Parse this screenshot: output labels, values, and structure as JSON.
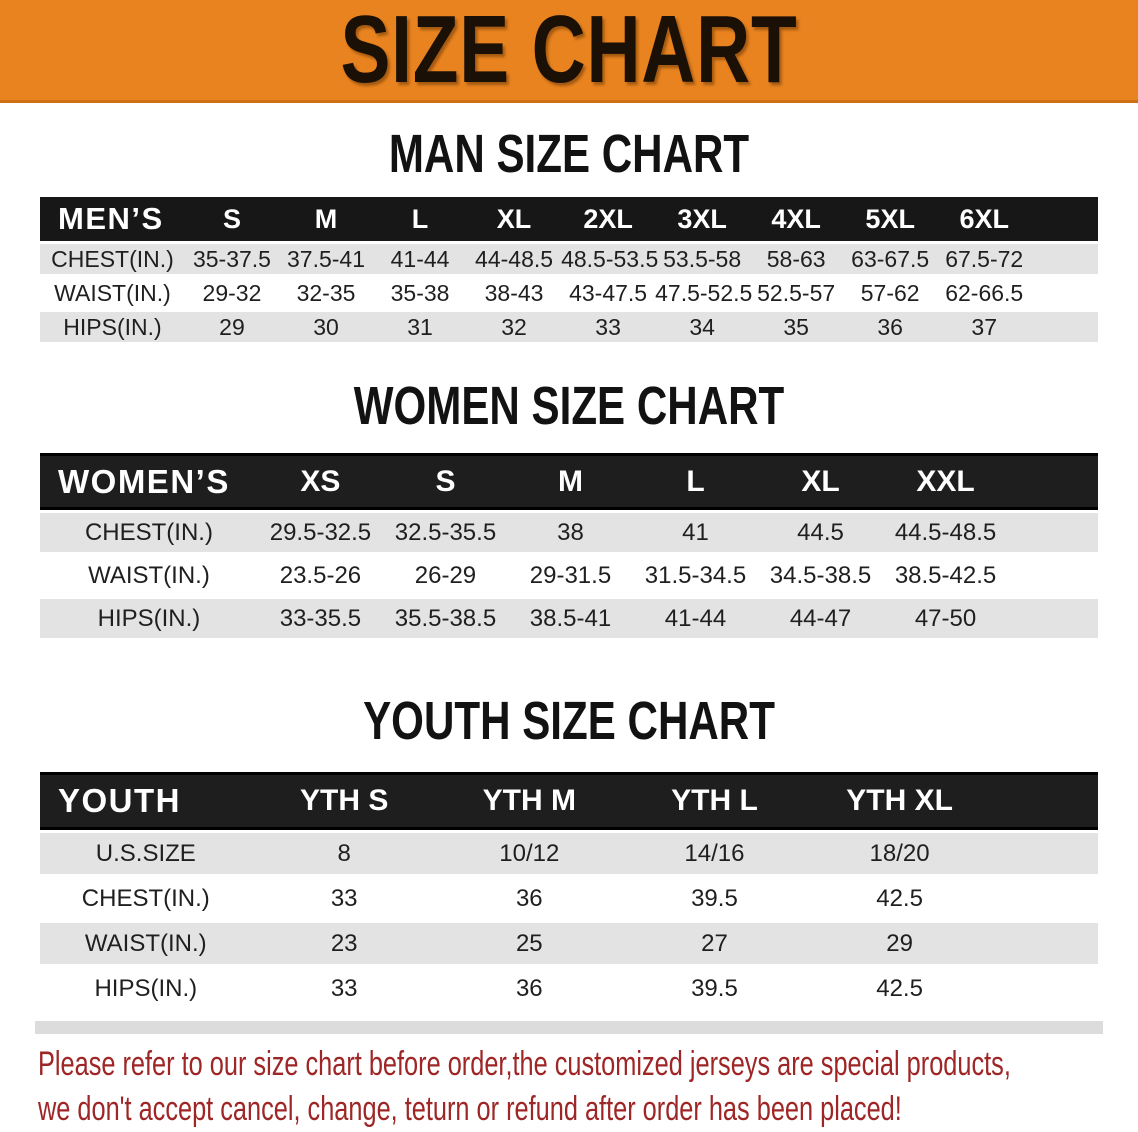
{
  "banner": {
    "title": "SIZE CHART"
  },
  "sections": [
    {
      "id": "men",
      "heading": "MAN SIZE CHART",
      "header_label": "MEN’S",
      "columns": [
        "S",
        "M",
        "L",
        "XL",
        "2XL",
        "3XL",
        "4XL",
        "5XL",
        "6XL"
      ],
      "rows": [
        {
          "label": "CHEST(IN.)",
          "values": [
            "35-37.5",
            "37.5-41",
            "41-44",
            "44-48.5",
            "48.5-53.5",
            "53.5-58",
            "58-63",
            "63-67.5",
            "67.5-72"
          ]
        },
        {
          "label": "WAIST(IN.)",
          "values": [
            "29-32",
            "32-35",
            "35-38",
            "38-43",
            "43-47.5",
            "47.5-52.5",
            "52.5-57",
            "57-62",
            "62-66.5"
          ]
        },
        {
          "label": "HIPS(IN.)",
          "values": [
            "29",
            "30",
            "31",
            "32",
            "33",
            "34",
            "35",
            "36",
            "37"
          ]
        }
      ]
    },
    {
      "id": "women",
      "heading": "WOMEN SIZE CHART",
      "header_label": "WOMEN’S",
      "columns": [
        "XS",
        "S",
        "M",
        "L",
        "XL",
        "XXL"
      ],
      "rows": [
        {
          "label": "CHEST(IN.)",
          "values": [
            "29.5-32.5",
            "32.5-35.5",
            "38",
            "41",
            "44.5",
            "44.5-48.5"
          ]
        },
        {
          "label": "WAIST(IN.)",
          "values": [
            "23.5-26",
            "26-29",
            "29-31.5",
            "31.5-34.5",
            "34.5-38.5",
            "38.5-42.5"
          ]
        },
        {
          "label": "HIPS(IN.)",
          "values": [
            "33-35.5",
            "35.5-38.5",
            "38.5-41",
            "41-44",
            "44-47",
            "47-50"
          ]
        }
      ]
    },
    {
      "id": "youth",
      "heading": "YOUTH SIZE CHART",
      "header_label": "YOUTH",
      "columns": [
        "YTH S",
        "YTH M",
        "YTH L",
        "YTH XL"
      ],
      "rows": [
        {
          "label": "U.S.SIZE",
          "values": [
            "8",
            "10/12",
            "14/16",
            "18/20"
          ]
        },
        {
          "label": "CHEST(IN.)",
          "values": [
            "33",
            "36",
            "39.5",
            "42.5"
          ]
        },
        {
          "label": "WAIST(IN.)",
          "values": [
            "23",
            "25",
            "27",
            "29"
          ]
        },
        {
          "label": "HIPS(IN.)",
          "values": [
            "33",
            "36",
            "39.5",
            "42.5"
          ]
        }
      ]
    }
  ],
  "disclaimer": {
    "line1": "Please refer to our size chart before order,the customized jerseys are special products,",
    "line2": "we don't accept cancel, change, teturn or refund after order has been placed!"
  },
  "colors": {
    "banner_orange": "#E8831F",
    "header_black": "#1A1A1A",
    "row_gray": "#E3E3E3",
    "disclaimer_red": "#9E2626"
  }
}
